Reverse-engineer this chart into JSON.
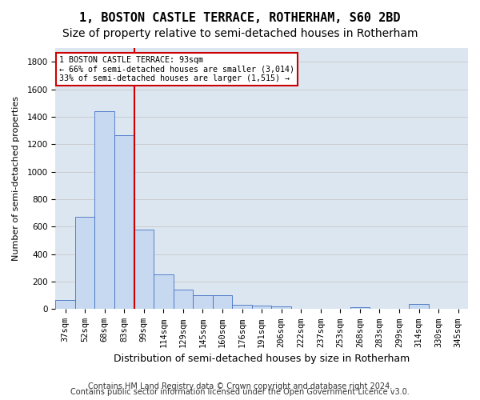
{
  "title1": "1, BOSTON CASTLE TERRACE, ROTHERHAM, S60 2BD",
  "title2": "Size of property relative to semi-detached houses in Rotherham",
  "xlabel": "Distribution of semi-detached houses by size in Rotherham",
  "ylabel": "Number of semi-detached properties",
  "footer1": "Contains HM Land Registry data © Crown copyright and database right 2024.",
  "footer2": "Contains public sector information licensed under the Open Government Licence v3.0.",
  "categories": [
    "37sqm",
    "52sqm",
    "68sqm",
    "83sqm",
    "99sqm",
    "114sqm",
    "129sqm",
    "145sqm",
    "160sqm",
    "176sqm",
    "191sqm",
    "206sqm",
    "222sqm",
    "237sqm",
    "253sqm",
    "268sqm",
    "283sqm",
    "299sqm",
    "314sqm",
    "330sqm",
    "345sqm"
  ],
  "values": [
    65,
    670,
    1440,
    1265,
    580,
    250,
    145,
    100,
    100,
    30,
    25,
    20,
    5,
    5,
    5,
    15,
    3,
    3,
    40,
    3,
    3
  ],
  "bar_color": "#c6d9f0",
  "bar_edge_color": "#4472c4",
  "property_size_sqm": 93,
  "property_bin_index": 3,
  "annotation_text": "1 BOSTON CASTLE TERRACE: 93sqm\n← 66% of semi-detached houses are smaller (3,014)\n33% of semi-detached houses are larger (1,515) →",
  "annotation_box_color": "#ffffff",
  "annotation_border_color": "#cc0000",
  "vline_color": "#cc0000",
  "ylim": [
    0,
    1900
  ],
  "yticks": [
    0,
    200,
    400,
    600,
    800,
    1000,
    1200,
    1400,
    1600,
    1800
  ],
  "grid_color": "#cccccc",
  "bg_color": "#dce6f1",
  "title1_fontsize": 11,
  "title2_fontsize": 10,
  "xlabel_fontsize": 9,
  "ylabel_fontsize": 8,
  "tick_fontsize": 7.5,
  "footer_fontsize": 7
}
